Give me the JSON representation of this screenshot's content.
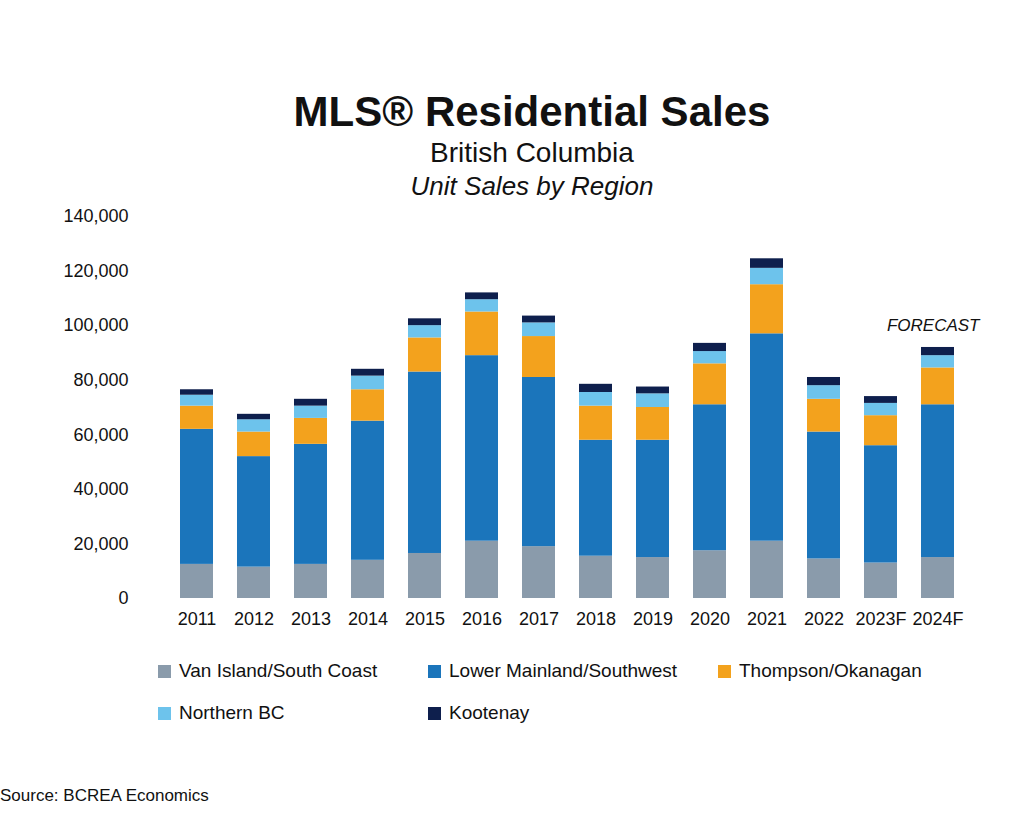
{
  "chart_data": {
    "type": "bar",
    "stacked": true,
    "grid": false,
    "legend": "bottom",
    "title": "MLS® Residential Sales",
    "subtitle": "British Columbia",
    "subsubtitle": "Unit Sales by Region",
    "annotation": "FORECAST",
    "source": "Source: BCREA Economics",
    "categories": [
      "2011",
      "2012",
      "2013",
      "2014",
      "2015",
      "2016",
      "2017",
      "2018",
      "2019",
      "2020",
      "2021",
      "2022",
      "2023F",
      "2024F"
    ],
    "series": [
      {
        "name": "Van Island/South Coast",
        "color": "#8a9bab",
        "values": [
          12500,
          11500,
          12500,
          14000,
          16500,
          21000,
          19000,
          15500,
          15000,
          17500,
          21000,
          14500,
          13000,
          15000
        ]
      },
      {
        "name": "Lower Mainland/Southwest",
        "color": "#1b75bb",
        "values": [
          49500,
          40500,
          44000,
          51000,
          66500,
          68000,
          62000,
          42500,
          43000,
          53500,
          76000,
          46500,
          43000,
          56000
        ]
      },
      {
        "name": "Thompson/Okanagan",
        "color": "#f3a21d",
        "values": [
          8500,
          9000,
          9500,
          11500,
          12500,
          16000,
          15000,
          12500,
          12000,
          15000,
          18000,
          12000,
          11000,
          13500
        ]
      },
      {
        "name": "Northern BC",
        "color": "#6dc3ec",
        "values": [
          4000,
          4500,
          4500,
          5000,
          4500,
          4500,
          5000,
          5000,
          5000,
          4500,
          6000,
          5000,
          4500,
          4500
        ]
      },
      {
        "name": "Kootenay",
        "color": "#0e1f4d",
        "values": [
          2000,
          2000,
          2500,
          2500,
          2500,
          2500,
          2500,
          3000,
          2500,
          3000,
          3500,
          3000,
          2500,
          3000
        ]
      }
    ],
    "ylim": [
      0,
      140000
    ],
    "yticks": [
      0,
      {
        "value": 20000,
        "label": "20,000"
      },
      {
        "value": 40000,
        "label": "40,000"
      },
      {
        "value": 60000,
        "label": "60,000"
      },
      {
        "value": 80000,
        "label": "80,000"
      },
      {
        "value": 100000,
        "label": "100,000"
      },
      {
        "value": 120000,
        "label": "120,000"
      },
      {
        "value": 140000,
        "label": "140,000"
      }
    ]
  }
}
